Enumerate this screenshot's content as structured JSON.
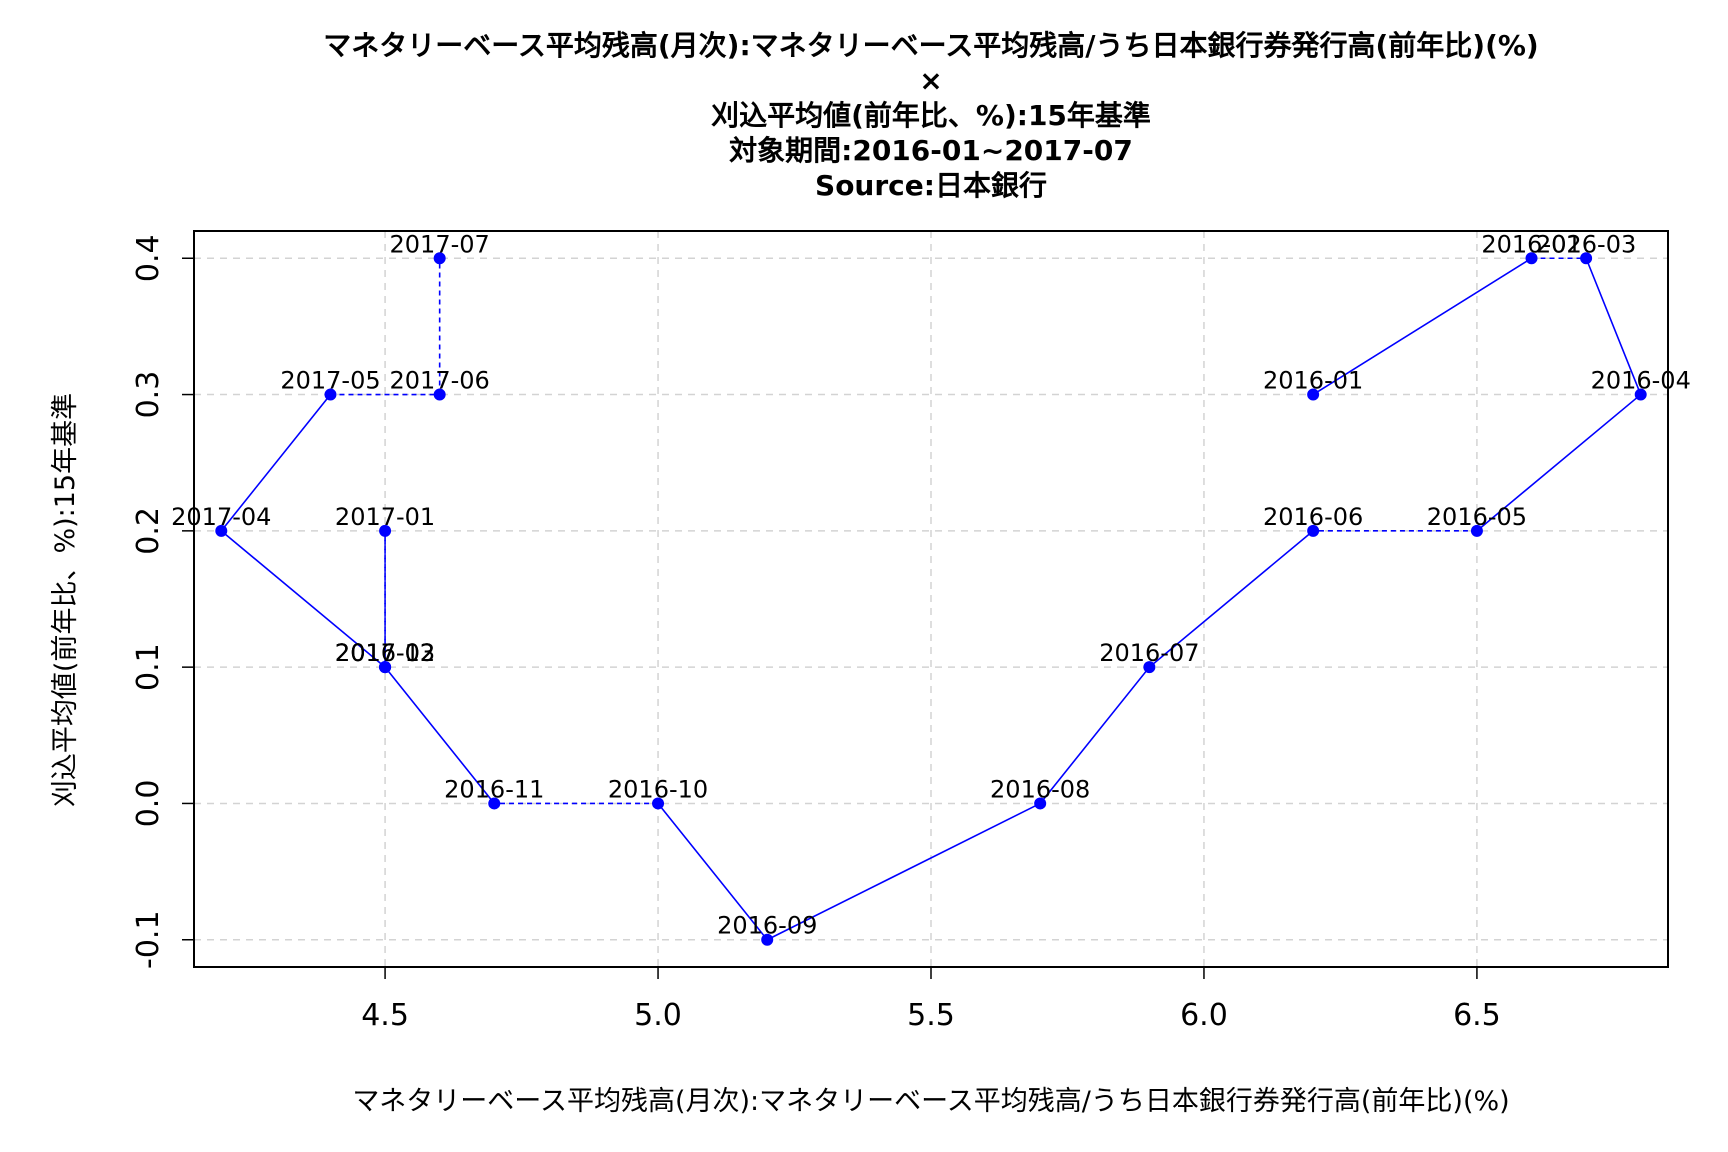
{
  "chart_data": {
    "type": "line",
    "title_lines": [
      "マネタリーベース平均残高(月次):マネタリーベース平均残高/うち日本銀行券発行高(前年比)(%)",
      "×",
      "刈込平均値(前年比、%):15年基準",
      "対象期間:2016-01~2017-07",
      "Source:日本銀行"
    ],
    "xlabel": "マネタリーベース平均残高(月次):マネタリーベース平均残高/うち日本銀行券発行高(前年比)(%)",
    "ylabel": "刈込平均値(前年比、%):15年基準",
    "xlim": [
      4.15,
      6.85
    ],
    "ylim": [
      -0.12,
      0.42
    ],
    "x_ticks": [
      4.5,
      5.0,
      5.5,
      6.0,
      6.5
    ],
    "x_tick_labels": [
      "4.5",
      "5.0",
      "5.5",
      "6.0",
      "6.5"
    ],
    "y_ticks": [
      -0.1,
      0.0,
      0.1,
      0.2,
      0.3,
      0.4
    ],
    "y_tick_labels": [
      "-0.1",
      "0.0",
      "0.1",
      "0.2",
      "0.3",
      "0.4"
    ],
    "grid": true,
    "color": "#0000ff",
    "points": [
      {
        "label": "2016-01",
        "x": 6.2,
        "y": 0.3
      },
      {
        "label": "2016-02",
        "x": 6.6,
        "y": 0.4
      },
      {
        "label": "2016-03",
        "x": 6.7,
        "y": 0.4
      },
      {
        "label": "2016-04",
        "x": 6.8,
        "y": 0.3
      },
      {
        "label": "2016-05",
        "x": 6.5,
        "y": 0.2
      },
      {
        "label": "2016-06",
        "x": 6.2,
        "y": 0.2
      },
      {
        "label": "2016-07",
        "x": 5.9,
        "y": 0.1
      },
      {
        "label": "2016-08",
        "x": 5.7,
        "y": 0.0
      },
      {
        "label": "2016-09",
        "x": 5.2,
        "y": -0.1
      },
      {
        "label": "2016-10",
        "x": 5.0,
        "y": 0.0
      },
      {
        "label": "2016-11",
        "x": 4.7,
        "y": 0.0
      },
      {
        "label": "2016-12",
        "x": 4.5,
        "y": 0.1
      },
      {
        "label": "2017-01",
        "x": 4.5,
        "y": 0.2
      },
      {
        "label": "2017-02",
        "x": 4.5,
        "y": 0.1
      },
      {
        "label": "2017-03",
        "x": 4.5,
        "y": 0.1
      },
      {
        "label": "2017-04",
        "x": 4.2,
        "y": 0.2
      },
      {
        "label": "2017-05",
        "x": 4.4,
        "y": 0.3
      },
      {
        "label": "2017-06",
        "x": 4.6,
        "y": 0.3
      },
      {
        "label": "2017-07",
        "x": 4.6,
        "y": 0.4
      }
    ]
  }
}
